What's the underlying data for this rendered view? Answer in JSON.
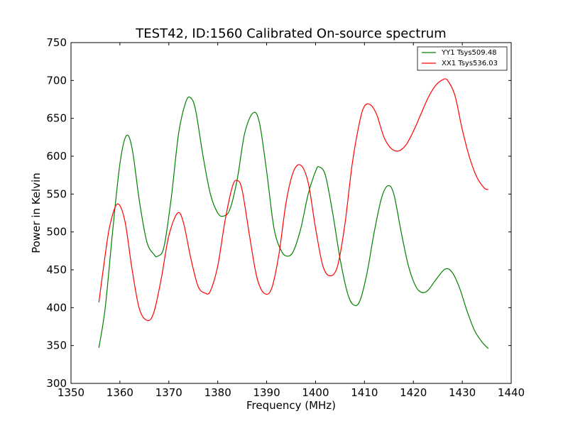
{
  "chart_data": {
    "type": "line",
    "title": "TEST42, ID:1560 Calibrated On-source spectrum",
    "xlabel": "Frequency (MHz)",
    "ylabel": "Power in Kelvin",
    "xlim": [
      1350,
      1440
    ],
    "ylim": [
      300,
      750
    ],
    "xticks": [
      1350,
      1360,
      1370,
      1380,
      1390,
      1400,
      1410,
      1420,
      1430,
      1440
    ],
    "yticks": [
      300,
      350,
      400,
      450,
      500,
      550,
      600,
      650,
      700,
      750
    ],
    "grid": false,
    "legend_position": "top-right",
    "series": [
      {
        "name": "YY1 Tsys509.48",
        "color": "#008000",
        "x": [
          1355.7,
          1357,
          1358.5,
          1360,
          1361.3,
          1362.5,
          1364,
          1365.5,
          1367,
          1367.7,
          1369,
          1370.5,
          1372,
          1373.5,
          1374.5,
          1375.5,
          1377,
          1378.5,
          1380,
          1381.2,
          1382.5,
          1384,
          1385.5,
          1387.2,
          1388.5,
          1390,
          1391.5,
          1393,
          1394.3,
          1395.5,
          1397,
          1398.5,
          1400,
          1400.7,
          1402,
          1403.5,
          1405,
          1406.5,
          1407.7,
          1409,
          1410.5,
          1412,
          1413.5,
          1414.8,
          1416,
          1417.5,
          1419,
          1420.5,
          1421.8,
          1423,
          1424.5,
          1426.5,
          1428,
          1429.5,
          1431,
          1432.5,
          1434,
          1435.3
        ],
        "y": [
          347,
          400,
          500,
          590,
          627,
          610,
          540,
          487,
          470,
          468,
          480,
          545,
          630,
          672,
          677,
          660,
          600,
          550,
          525,
          521,
          530,
          570,
          630,
          657,
          645,
          580,
          505,
          475,
          468,
          475,
          505,
          550,
          580,
          586,
          575,
          525,
          465,
          420,
          404,
          408,
          445,
          500,
          545,
          561,
          550,
          500,
          455,
          428,
          420,
          423,
          436,
          451,
          446,
          425,
          395,
          370,
          355,
          346
        ]
      },
      {
        "name": "XX1 Tsys536.03",
        "color": "#ff0000",
        "x": [
          1355.7,
          1357,
          1358,
          1359.5,
          1361,
          1362.5,
          1364,
          1365.7,
          1367,
          1368.5,
          1370,
          1371.8,
          1373,
          1374.5,
          1376,
          1377.5,
          1378.5,
          1380,
          1381.5,
          1383,
          1384,
          1385,
          1386.5,
          1388,
          1389.5,
          1391,
          1392.5,
          1394,
          1395.5,
          1397,
          1398.5,
          1400,
          1401.5,
          1403,
          1404.5,
          1406,
          1407.5,
          1409,
          1410,
          1411.2,
          1412.5,
          1414,
          1415.5,
          1417,
          1418.5,
          1420,
          1421.5,
          1423,
          1424.5,
          1426,
          1427,
          1428.5,
          1430,
          1431.5,
          1433,
          1434.5,
          1435.3
        ],
        "y": [
          407,
          470,
          510,
          537,
          515,
          450,
          398,
          383,
          395,
          440,
          495,
          525,
          512,
          465,
          428,
          419,
          422,
          455,
          515,
          560,
          568,
          555,
          495,
          440,
          419,
          425,
          470,
          540,
          580,
          588,
          565,
          505,
          455,
          442,
          455,
          510,
          590,
          645,
          666,
          668,
          655,
          625,
          610,
          607,
          615,
          633,
          655,
          677,
          693,
          701,
          700,
          680,
          635,
          598,
          572,
          558,
          556
        ]
      }
    ]
  }
}
